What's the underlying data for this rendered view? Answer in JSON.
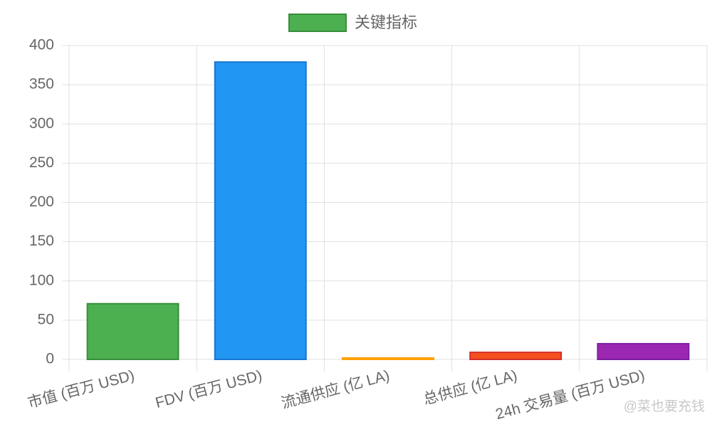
{
  "chart_data": {
    "type": "bar",
    "categories": [
      "市值 (百万 USD)",
      "FDV (百万 USD)",
      "流通供应 (亿 LA)",
      "总供应 (亿 LA)",
      "24h 交易量 (百万 USD)"
    ],
    "series": [
      {
        "name": "关键指标",
        "color": "#4caf50",
        "values": [
          71,
          379,
          1.8,
          9,
          20
        ],
        "colors": [
          "#4caf50",
          "#2196f3",
          "#ffc107",
          "#f4511e",
          "#9c27b0"
        ],
        "border_colors": [
          "#388e3c",
          "#1976d2",
          "#ffa000",
          "#d32f2f",
          "#7b1fa2"
        ]
      }
    ],
    "ylim": [
      0,
      400
    ],
    "yticks": [
      0,
      50,
      100,
      150,
      200,
      250,
      300,
      350,
      400
    ],
    "grid": true,
    "legend": "top",
    "watermark": "@菜也要充钱"
  }
}
